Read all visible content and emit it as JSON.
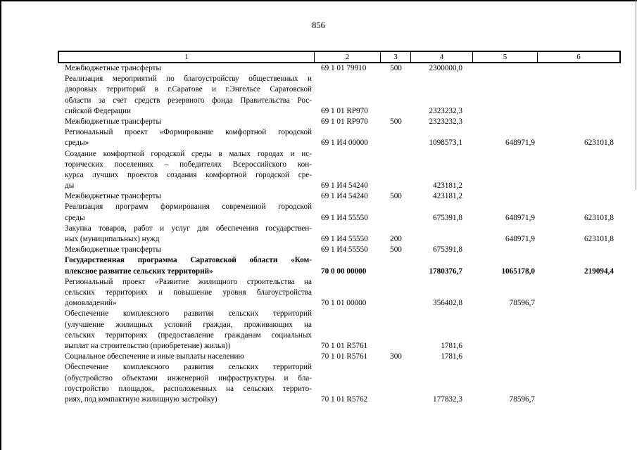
{
  "page": {
    "number": "856"
  },
  "table": {
    "column_headers": [
      "1",
      "2",
      "3",
      "4",
      "5",
      "6"
    ],
    "rows": [
      {
        "lines": [
          "Межбюджетные трансферты"
        ],
        "code": "69 1 01 79910",
        "vr": "500",
        "a1": "2300000,0",
        "a2": "",
        "a3": "",
        "bold": false
      },
      {
        "lines": [
          "Реализация мероприятий по благоустройству общественных и",
          "дворовых территорий в г.Саратове и г.Энгельсе Саратовской",
          "области за счет средств резервного фонда Правительства Рос-",
          "сийской Федерации"
        ],
        "code": "69 1 01 RP970",
        "vr": "",
        "a1": "2323232,3",
        "a2": "",
        "a3": "",
        "bold": false
      },
      {
        "lines": [
          "Межбюджетные трансферты"
        ],
        "code": "69 1 01 RP970",
        "vr": "500",
        "a1": "2323232,3",
        "a2": "",
        "a3": "",
        "bold": false
      },
      {
        "lines": [
          "Региональный проект «Формирование комфортной городской",
          "среды»"
        ],
        "code": "69 1 И4 00000",
        "vr": "",
        "a1": "1098573,1",
        "a2": "648971,9",
        "a3": "623101,8",
        "bold": false
      },
      {
        "lines": [
          "Создание комфортной городской среды в малых городах и ис-",
          "торических поселениях – победителях Всероссийского кон-",
          "курса лучших проектов создания комфортной городской сре-",
          "ды"
        ],
        "code": "69 1 И4 54240",
        "vr": "",
        "a1": "423181,2",
        "a2": "",
        "a3": "",
        "bold": false
      },
      {
        "lines": [
          "Межбюджетные трансферты"
        ],
        "code": "69 1 И4 54240",
        "vr": "500",
        "a1": "423181,2",
        "a2": "",
        "a3": "",
        "bold": false
      },
      {
        "lines": [
          "Реализация программ формирования современной городской",
          "среды"
        ],
        "code": "69 1 И4 55550",
        "vr": "",
        "a1": "675391,8",
        "a2": "648971,9",
        "a3": "623101,8",
        "bold": false
      },
      {
        "lines": [
          "Закупка товаров, работ и услуг для обеспечения государствен-",
          "ных (муниципальных) нужд"
        ],
        "code": "69 1 И4 55550",
        "vr": "200",
        "a1": "",
        "a2": "648971,9",
        "a3": "623101,8",
        "bold": false
      },
      {
        "lines": [
          "Межбюджетные трансферты"
        ],
        "code": "69 1 И4 55550",
        "vr": "500",
        "a1": "675391,8",
        "a2": "",
        "a3": "",
        "bold": false
      },
      {
        "lines": [
          "Государственная программа Саратовской области «Ком-",
          "плексное развитие сельских территорий»"
        ],
        "code": "70 0 00 00000",
        "vr": "",
        "a1": "1780376,7",
        "a2": "1065178,0",
        "a3": "219094,4",
        "bold": true
      },
      {
        "lines": [
          "Региональный проект «Развитие жилищного строительства на",
          "сельских территориях и повышение уровня благоустройства",
          "домовладений»"
        ],
        "code": "70 1 01 00000",
        "vr": "",
        "a1": "356402,8",
        "a2": "78596,7",
        "a3": "",
        "bold": false
      },
      {
        "lines": [
          "Обеспечение комплексного развития сельских территорий",
          "(улучшение жилищных условий граждан, проживающих на",
          "сельских территориях (предоставление гражданам социальных",
          "выплат на строительство (приобретение) жилья))"
        ],
        "code": "70 1 01 R5761",
        "vr": "",
        "a1": "1781,6",
        "a2": "",
        "a3": "",
        "bold": false
      },
      {
        "lines": [
          "Социальное обеспечение и иные выплаты населению"
        ],
        "code": "70 1 01 R5761",
        "vr": "300",
        "a1": "1781,6",
        "a2": "",
        "a3": "",
        "bold": false
      },
      {
        "lines": [
          "Обеспечение комплексного развития сельских территорий",
          "(обустройство объектами инженерной инфраструктуры и бла-",
          "гоустройство площадок, расположенных на сельских террито-",
          "риях, под компактную жилищную застройку)"
        ],
        "code": "70 1 01 R5762",
        "vr": "",
        "a1": "177832,3",
        "a2": "78596,7",
        "a3": "",
        "bold": false
      }
    ]
  }
}
